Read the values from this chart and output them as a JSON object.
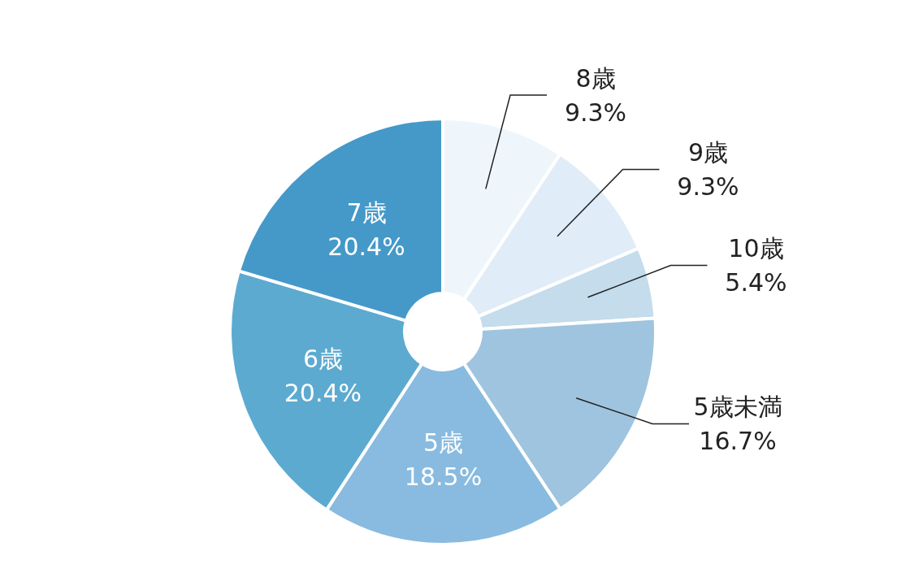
{
  "chart_data": {
    "type": "donut",
    "categories": [
      "8歳",
      "9歳",
      "10歳",
      "5歳未満",
      "5歳",
      "6歳",
      "7歳"
    ],
    "values": [
      9.3,
      9.3,
      5.4,
      16.7,
      18.5,
      20.4,
      20.4
    ],
    "value_labels": [
      "9.3%",
      "9.3%",
      "5.4%",
      "16.7%",
      "18.5%",
      "20.4%",
      "20.4%"
    ],
    "colors": [
      "#eef6fc",
      "#e0ecf7",
      "#c4dcec",
      "#9fc4df",
      "#88bbdf",
      "#5daad1",
      "#4499c9"
    ],
    "legend": false
  }
}
